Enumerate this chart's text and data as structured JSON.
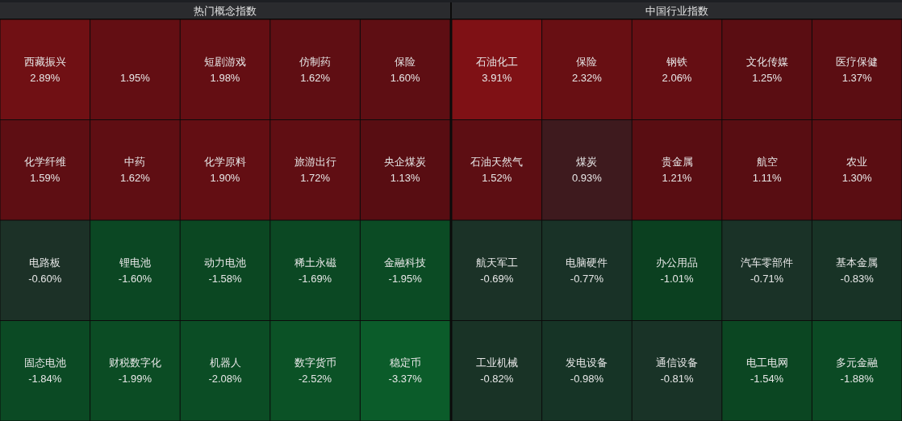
{
  "chart_data": [
    {
      "type": "other",
      "title": "热门概念指数",
      "categories": [
        "西藏振兴",
        null,
        "短剧游戏",
        "仿制药",
        "保险",
        "化学纤维",
        "中药",
        "化学原料",
        "旅游出行",
        "央企煤炭",
        "电路板",
        "锂电池",
        "动力电池",
        "稀土永磁",
        "金融科技",
        "固态电池",
        "财税数字化",
        "机器人",
        "数字货币",
        "稳定币"
      ],
      "values": [
        2.89,
        1.95,
        1.98,
        1.62,
        1.6,
        1.59,
        1.62,
        1.9,
        1.72,
        1.13,
        -0.6,
        -1.6,
        -1.58,
        -1.69,
        -1.95,
        -1.84,
        -1.99,
        -2.08,
        -2.52,
        -3.37
      ],
      "value_labels": [
        "2.89%",
        "1.95%",
        "1.98%",
        "1.62%",
        "1.60%",
        "1.59%",
        "1.62%",
        "1.90%",
        "1.72%",
        "1.13%",
        "-0.60%",
        "-1.60%",
        "-1.58%",
        "-1.69%",
        "-1.95%",
        "-1.84%",
        "-1.99%",
        "-2.08%",
        "-2.52%",
        "-3.37%"
      ]
    },
    {
      "type": "other",
      "title": "中国行业指数",
      "categories": [
        "石油化工",
        "保险",
        "钢铁",
        "文化传媒",
        "医疗保健",
        "石油天然气",
        "煤炭",
        "贵金属",
        "航空",
        "农业",
        "航天军工",
        "电脑硬件",
        "办公用品",
        "汽车零部件",
        "基本金属",
        "工业机械",
        "发电设备",
        "通信设备",
        "电工电网",
        "多元金融"
      ],
      "values": [
        3.91,
        2.32,
        2.06,
        1.25,
        1.37,
        1.52,
        0.93,
        1.21,
        1.11,
        1.3,
        -0.69,
        -0.77,
        -1.01,
        -0.71,
        -0.83,
        -0.82,
        -0.98,
        -0.81,
        -1.54,
        -1.88
      ],
      "value_labels": [
        "3.91%",
        "2.32%",
        "2.06%",
        "1.25%",
        "1.37%",
        "1.52%",
        "0.93%",
        "1.21%",
        "1.11%",
        "1.30%",
        "-0.69%",
        "-0.77%",
        "-1.01%",
        "-0.71%",
        "-0.83%",
        "-0.82%",
        "-0.98%",
        "-0.81%",
        "-1.54%",
        "-1.88%"
      ]
    }
  ]
}
